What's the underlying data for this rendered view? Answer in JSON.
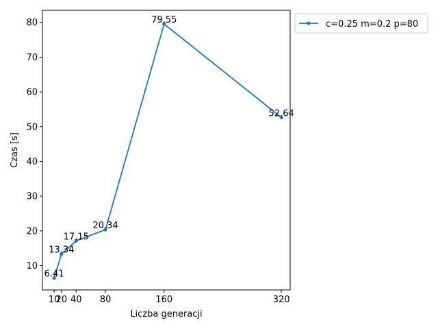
{
  "chart_data": {
    "type": "line",
    "xlabel": "Liczba generacji",
    "ylabel": "Czas [s]",
    "x_ticks": [
      10,
      20,
      40,
      80,
      160,
      320
    ],
    "y_ticks": [
      10,
      20,
      30,
      40,
      50,
      60,
      70,
      80
    ],
    "xlim": [
      -6,
      332
    ],
    "ylim": [
      3,
      83.5
    ],
    "grid": false,
    "legend_position": "outside-top-right",
    "series": [
      {
        "name": "c=0.25 m=0.2 p=80",
        "color": "#1f77b4",
        "marker": "circle",
        "x": [
          10,
          20,
          40,
          80,
          160,
          320
        ],
        "y": [
          6.41,
          13.34,
          17.15,
          20.34,
          79.55,
          52.64
        ],
        "labels": [
          "6.41",
          "13.34",
          "17.15",
          "20.34",
          "79.55",
          "52.64"
        ]
      }
    ]
  }
}
